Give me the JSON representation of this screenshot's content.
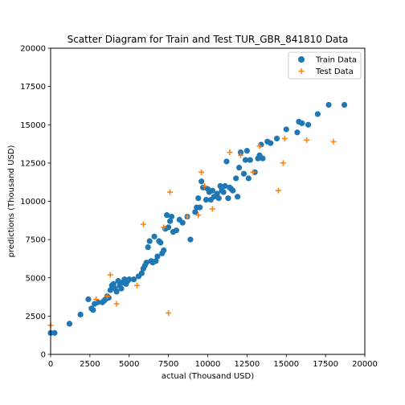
{
  "chart_data": {
    "type": "scatter",
    "title": "Scatter Diagram for Train and Test TUR_GBR_841810 Data",
    "xlabel": "actual (Thousand USD)",
    "ylabel": "predictions (Thousand USD)",
    "xlim": [
      0,
      20000
    ],
    "ylim": [
      0,
      20000
    ],
    "xticks": [
      0,
      2500,
      5000,
      7500,
      10000,
      12500,
      15000,
      17500,
      20000
    ],
    "yticks": [
      0,
      2500,
      5000,
      7500,
      10000,
      12500,
      15000,
      17500,
      20000
    ],
    "grid": false,
    "legend_position": "top-right",
    "series": [
      {
        "name": "Train Data",
        "marker": "circle",
        "color": "#1f77b4",
        "points": [
          [
            0,
            1400
          ],
          [
            250,
            1400
          ],
          [
            1200,
            2000
          ],
          [
            1900,
            2600
          ],
          [
            2400,
            3600
          ],
          [
            2600,
            3000
          ],
          [
            2700,
            2900
          ],
          [
            2800,
            3300
          ],
          [
            3000,
            3400
          ],
          [
            3300,
            3400
          ],
          [
            3400,
            3500
          ],
          [
            3500,
            3600
          ],
          [
            3600,
            3800
          ],
          [
            3700,
            3700
          ],
          [
            3800,
            4200
          ],
          [
            3900,
            4500
          ],
          [
            4000,
            4600
          ],
          [
            4100,
            4300
          ],
          [
            4200,
            4100
          ],
          [
            4300,
            4800
          ],
          [
            4400,
            4500
          ],
          [
            4500,
            4300
          ],
          [
            4600,
            4700
          ],
          [
            4700,
            4900
          ],
          [
            4800,
            4600
          ],
          [
            4900,
            4800
          ],
          [
            5000,
            4900
          ],
          [
            5300,
            4900
          ],
          [
            5600,
            5100
          ],
          [
            5800,
            5300
          ],
          [
            5900,
            5600
          ],
          [
            6000,
            5800
          ],
          [
            6100,
            6000
          ],
          [
            6200,
            7000
          ],
          [
            6300,
            7400
          ],
          [
            6400,
            6100
          ],
          [
            6500,
            6000
          ],
          [
            6600,
            7700
          ],
          [
            6700,
            6100
          ],
          [
            6800,
            6400
          ],
          [
            6900,
            7400
          ],
          [
            7000,
            7300
          ],
          [
            7100,
            6600
          ],
          [
            7200,
            6800
          ],
          [
            7300,
            8200
          ],
          [
            7400,
            9100
          ],
          [
            7500,
            8300
          ],
          [
            7600,
            8700
          ],
          [
            7700,
            9000
          ],
          [
            7800,
            8000
          ],
          [
            8000,
            8100
          ],
          [
            8200,
            8800
          ],
          [
            8400,
            8600
          ],
          [
            8700,
            9000
          ],
          [
            8900,
            7500
          ],
          [
            9200,
            9300
          ],
          [
            9300,
            9600
          ],
          [
            9400,
            10200
          ],
          [
            9500,
            9600
          ],
          [
            9600,
            11300
          ],
          [
            9700,
            10900
          ],
          [
            9900,
            10100
          ],
          [
            10000,
            10800
          ],
          [
            10100,
            10600
          ],
          [
            10200,
            10100
          ],
          [
            10300,
            10700
          ],
          [
            10400,
            10300
          ],
          [
            10600,
            10500
          ],
          [
            10700,
            10200
          ],
          [
            10800,
            11000
          ],
          [
            10900,
            10700
          ],
          [
            11000,
            10600
          ],
          [
            11100,
            11000
          ],
          [
            11200,
            12600
          ],
          [
            11300,
            10200
          ],
          [
            11400,
            10900
          ],
          [
            11500,
            10800
          ],
          [
            11600,
            10700
          ],
          [
            11800,
            11500
          ],
          [
            11900,
            10300
          ],
          [
            12000,
            12200
          ],
          [
            12100,
            13200
          ],
          [
            12300,
            11800
          ],
          [
            12400,
            12700
          ],
          [
            12500,
            13300
          ],
          [
            12600,
            11500
          ],
          [
            12700,
            12700
          ],
          [
            13000,
            11900
          ],
          [
            13200,
            12800
          ],
          [
            13300,
            13000
          ],
          [
            13400,
            13700
          ],
          [
            13500,
            12800
          ],
          [
            13800,
            13900
          ],
          [
            14000,
            13800
          ],
          [
            14400,
            14100
          ],
          [
            15000,
            14700
          ],
          [
            15700,
            14500
          ],
          [
            15800,
            15200
          ],
          [
            16000,
            15100
          ],
          [
            16400,
            15000
          ],
          [
            17000,
            15700
          ],
          [
            17700,
            16300
          ],
          [
            18700,
            16300
          ]
        ]
      },
      {
        "name": "Test Data",
        "marker": "plus",
        "color": "#ff7f0e",
        "points": [
          [
            0,
            1900
          ],
          [
            2900,
            3600
          ],
          [
            3600,
            3800
          ],
          [
            3800,
            5200
          ],
          [
            4200,
            3300
          ],
          [
            5500,
            4500
          ],
          [
            5900,
            8500
          ],
          [
            7200,
            8300
          ],
          [
            7500,
            2700
          ],
          [
            7600,
            10600
          ],
          [
            8700,
            9000
          ],
          [
            9400,
            9100
          ],
          [
            9600,
            11900
          ],
          [
            9800,
            11000
          ],
          [
            10300,
            9500
          ],
          [
            11400,
            13200
          ],
          [
            12100,
            13000
          ],
          [
            12900,
            11900
          ],
          [
            13300,
            13600
          ],
          [
            14500,
            10700
          ],
          [
            14800,
            12500
          ],
          [
            14900,
            14100
          ],
          [
            16300,
            14000
          ],
          [
            18000,
            13900
          ]
        ]
      }
    ]
  }
}
